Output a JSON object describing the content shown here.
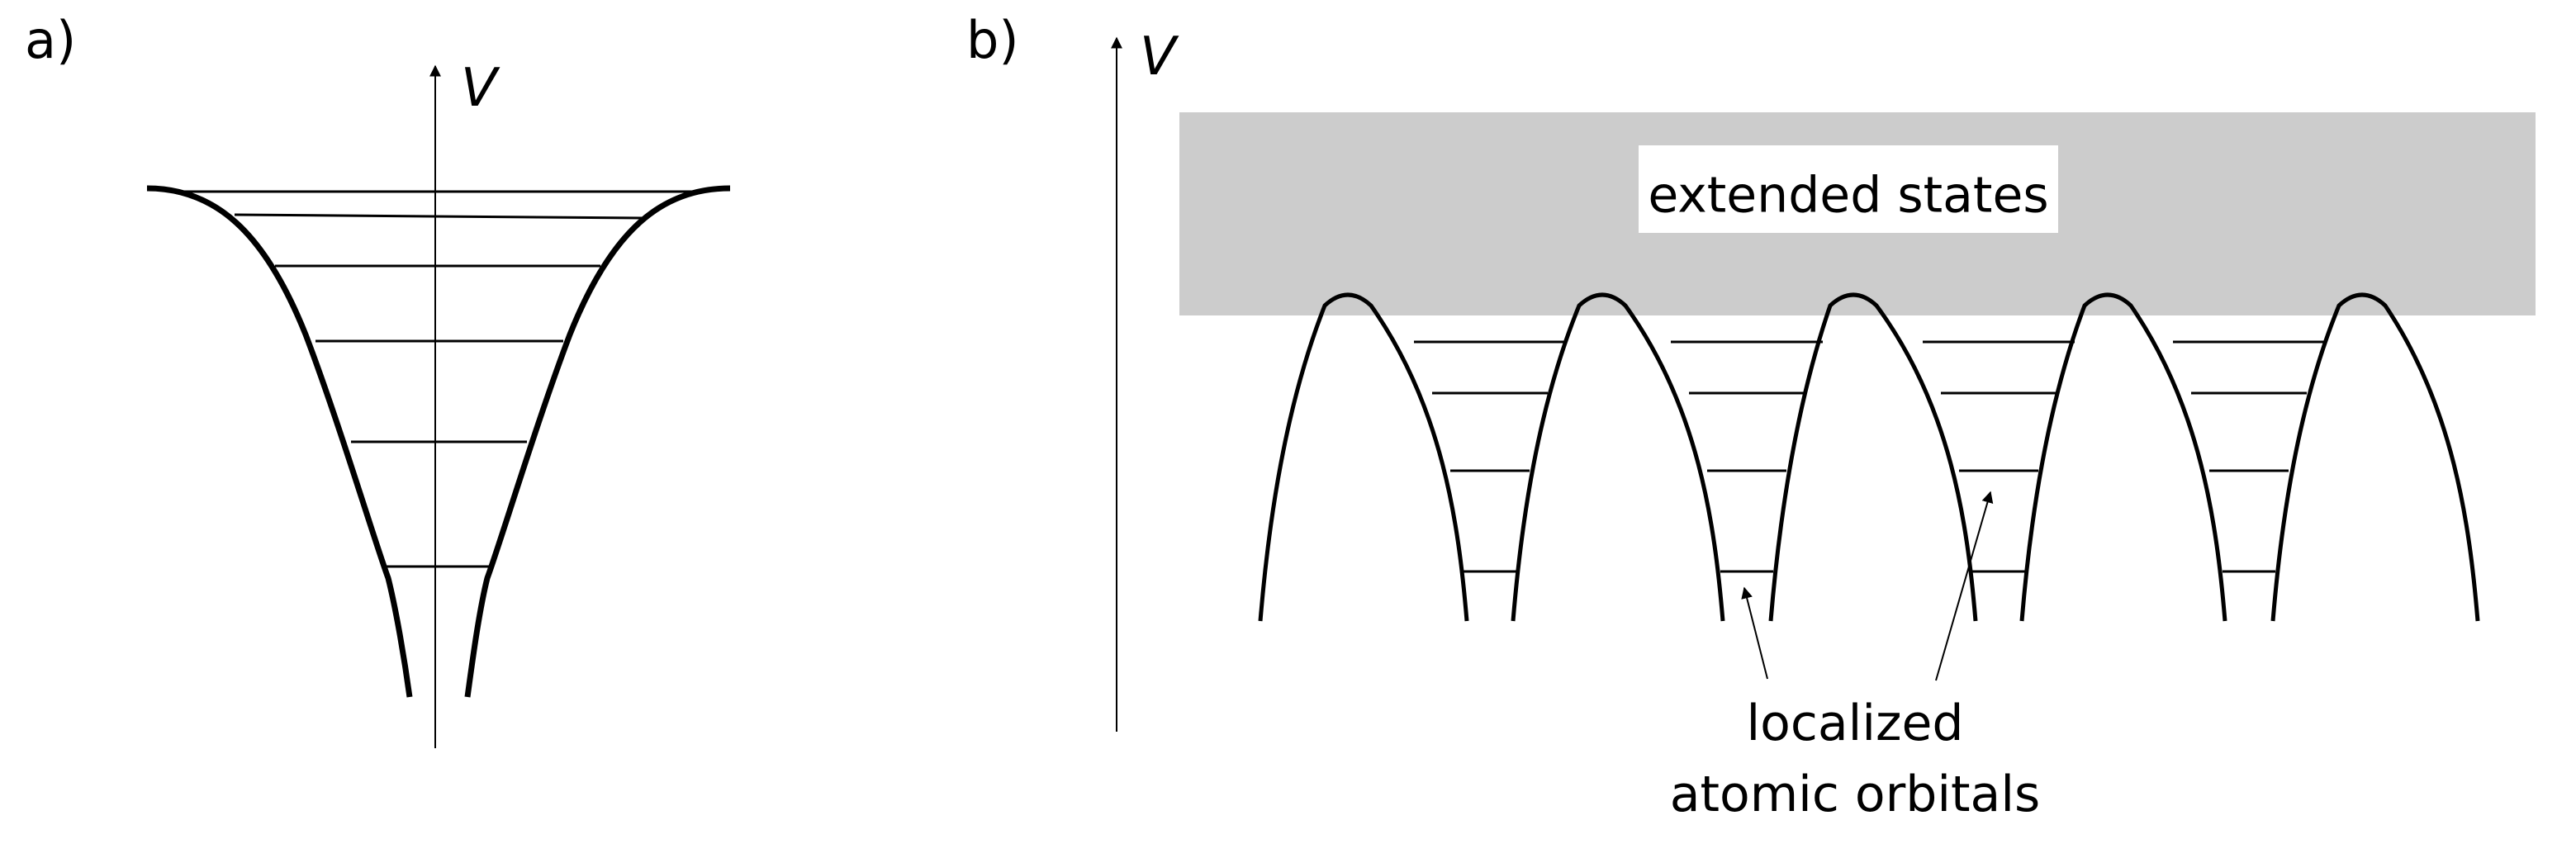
{
  "panels": {
    "a": {
      "label": "a)",
      "axis_label": "V"
    },
    "b": {
      "label": "b)",
      "axis_label": "V",
      "band_label": "extended states",
      "annotation_line1": "localized",
      "annotation_line2": "atomic orbitals"
    }
  },
  "colors": {
    "band_fill": "#cccccc",
    "ink": "#000000",
    "background": "#ffffff"
  }
}
